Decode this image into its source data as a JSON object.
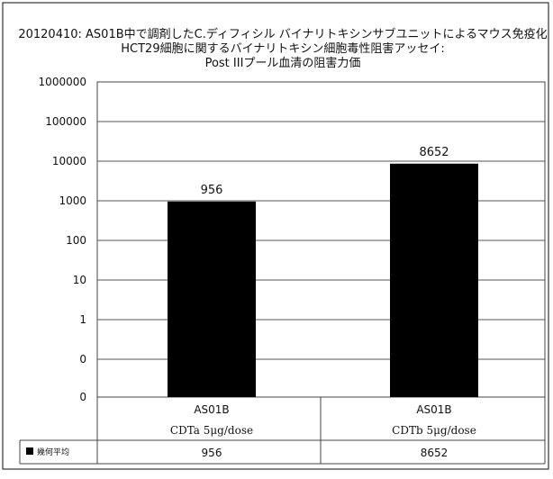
{
  "chart_data": {
    "type": "bar",
    "title_lines": [
      "20120410: AS01B中で調剤したC.ディフィシル バイナリトキシンサブユニットによるマウス免疫化",
      "HCT29細胞に関するバイナリトキシン細胞毒性阻害アッセイ:",
      "Post IIIプール血清の阻害力価"
    ],
    "y_scale": "log",
    "y_tick_labels": [
      "1000000",
      "100000",
      "10000",
      "1000",
      "100",
      "10",
      "1",
      "0",
      "0"
    ],
    "categories": [
      {
        "line1": "AS01B",
        "line2": "CDTa 5μg/dose"
      },
      {
        "line1": "AS01B",
        "line2": "CDTb 5μg/dose"
      }
    ],
    "series": [
      {
        "name": "幾何平均",
        "values": [
          956,
          8652
        ],
        "color": "#000000"
      }
    ],
    "data_labels": [
      "956",
      "8652"
    ],
    "table_values": [
      "956",
      "8652"
    ],
    "grid": true,
    "legend": "table-left"
  }
}
